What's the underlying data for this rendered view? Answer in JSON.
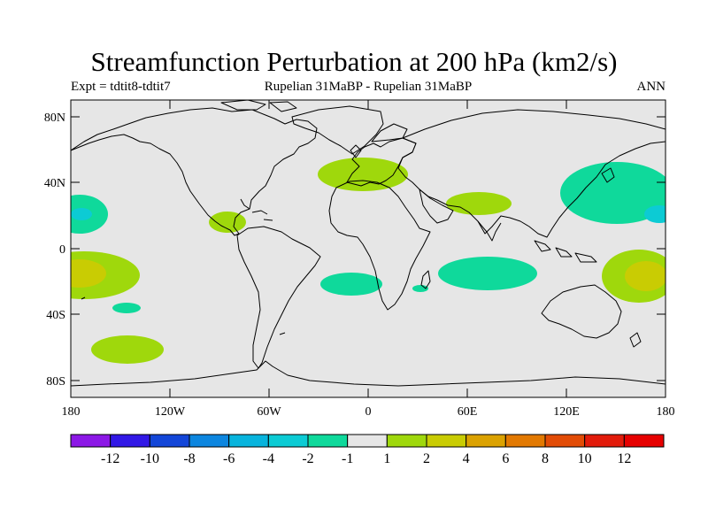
{
  "header": {
    "title": "Streamfunction Perturbation at 200 hPa (km2/s)",
    "left_label": "Expt = tdtit8-tdtit7",
    "center_label": "Rupelian  31MaBP - Rupelian  31MaBP",
    "right_label": "ANN"
  },
  "map": {
    "background_color": "#e6e6e6",
    "coastline_color": "#000000",
    "lat_ticks": [
      "80N",
      "40N",
      "0",
      "40S",
      "80S"
    ],
    "lon_ticks": [
      "180",
      "120W",
      "60W",
      "0",
      "60E",
      "120E",
      "180"
    ]
  },
  "anomalies": [
    {
      "name": "anomaly-north-pacific-west",
      "level": -2
    },
    {
      "name": "anomaly-north-pacific-west-core",
      "level": -4
    },
    {
      "name": "anomaly-south-pacific-west",
      "level": 2
    },
    {
      "name": "anomaly-south-pacific-west-core",
      "level": 4
    },
    {
      "name": "anomaly-south-pacific-small",
      "level": -2
    },
    {
      "name": "anomaly-southern-ocean-pacific",
      "level": 2
    },
    {
      "name": "anomaly-central-america",
      "level": 2
    },
    {
      "name": "anomaly-europe",
      "level": 2
    },
    {
      "name": "anomaly-middle-east",
      "level": 2
    },
    {
      "name": "anomaly-south-atlantic",
      "level": -2
    },
    {
      "name": "anomaly-madagascar",
      "level": -2
    },
    {
      "name": "anomaly-indian-ocean",
      "level": -2
    },
    {
      "name": "anomaly-north-pacific-east",
      "level": -2
    },
    {
      "name": "anomaly-north-pacific-east-core",
      "level": -4
    },
    {
      "name": "anomaly-west-pacific-south",
      "level": 2
    },
    {
      "name": "anomaly-west-pacific-south-core",
      "level": 4
    }
  ],
  "colorbar": {
    "labels": [
      "-12",
      "-10",
      "-8",
      "-6",
      "-4",
      "-2",
      "-1",
      "1",
      "2",
      "4",
      "6",
      "8",
      "10",
      "12"
    ],
    "colors": [
      "#8c18e6",
      "#3218e6",
      "#1346d8",
      "#0d86df",
      "#08b4dd",
      "#0ccbd4",
      "#0fd99b",
      "#e6e6e6",
      "#9fd80c",
      "#c9cc03",
      "#dba201",
      "#e27901",
      "#e24c06",
      "#e21b0b",
      "#e60000"
    ]
  },
  "level_colors": {
    "-4": "#0ccbd4",
    "-2": "#0fd99b",
    "2": "#9fd80c",
    "4": "#c9cc03"
  }
}
